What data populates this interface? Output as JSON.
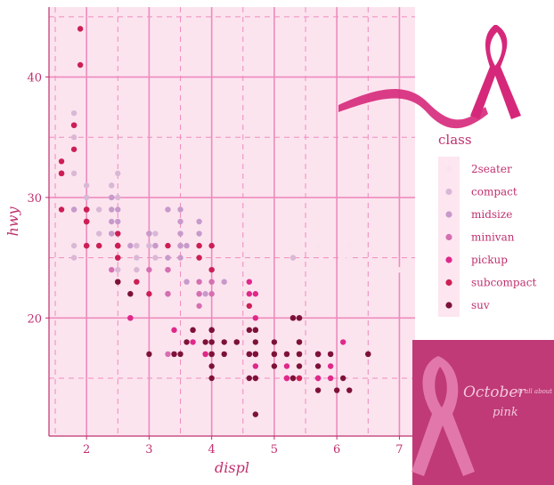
{
  "chart_data": {
    "type": "scatter",
    "xlabel": "displ",
    "ylabel": "hwy",
    "xlim": [
      1.4,
      7.25
    ],
    "ylim": [
      10.2,
      45.8
    ],
    "x_ticks": [
      2,
      3,
      4,
      5,
      6,
      7
    ],
    "y_ticks": [
      20,
      30,
      40
    ],
    "grid": true,
    "legend": {
      "title": "class",
      "position": "right",
      "entries": [
        "2seater",
        "compact",
        "midsize",
        "minivan",
        "pickup",
        "subcompact",
        "suv"
      ]
    },
    "colors": {
      "2seater": "#fbe3ee",
      "compact": "#d9b8d6",
      "midsize": "#c79acb",
      "minivan": "#d66fb1",
      "pickup": "#e0288a",
      "subcompact": "#cc1f55",
      "suv": "#7d1238"
    },
    "series": [
      {
        "name": "2seater",
        "points": [
          [
            5.7,
            26
          ],
          [
            6.1,
            25
          ],
          [
            6.2,
            26
          ],
          [
            6.2,
            25
          ],
          [
            7.0,
            24
          ]
        ]
      },
      {
        "name": "compact",
        "points": [
          [
            1.8,
            29
          ],
          [
            1.8,
            29
          ],
          [
            2.0,
            31
          ],
          [
            2.0,
            30
          ],
          [
            2.8,
            26
          ],
          [
            2.8,
            26
          ],
          [
            3.1,
            27
          ],
          [
            1.8,
            26
          ],
          [
            1.8,
            25
          ],
          [
            2.0,
            28
          ],
          [
            2.0,
            29
          ],
          [
            2.8,
            25
          ],
          [
            3.1,
            25
          ],
          [
            2.2,
            27
          ],
          [
            2.2,
            29
          ],
          [
            2.4,
            31
          ],
          [
            2.4,
            31
          ],
          [
            3.0,
            26
          ],
          [
            1.8,
            36
          ],
          [
            1.8,
            36
          ],
          [
            1.8,
            32
          ],
          [
            2.0,
            28
          ],
          [
            2.2,
            26
          ],
          [
            2.5,
            25
          ],
          [
            2.5,
            25
          ],
          [
            2.5,
            32
          ],
          [
            2.5,
            30
          ],
          [
            1.8,
            35
          ],
          [
            1.8,
            37
          ],
          [
            2.5,
            27
          ],
          [
            2.5,
            24
          ],
          [
            2.8,
            24
          ],
          [
            5.3,
            25
          ]
        ]
      },
      {
        "name": "midsize",
        "points": [
          [
            2.4,
            30
          ],
          [
            2.4,
            27
          ],
          [
            3.1,
            26
          ],
          [
            3.5,
            29
          ],
          [
            3.6,
            26
          ],
          [
            3.5,
            27
          ],
          [
            3.5,
            26
          ],
          [
            3.5,
            26
          ],
          [
            3.5,
            25
          ],
          [
            3.8,
            28
          ],
          [
            3.8,
            27
          ],
          [
            4.0,
            26
          ],
          [
            2.5,
            29
          ],
          [
            2.5,
            28
          ],
          [
            3.3,
            29
          ],
          [
            2.2,
            26
          ],
          [
            2.4,
            28
          ],
          [
            3.0,
            27
          ],
          [
            2.4,
            30
          ],
          [
            2.7,
            26
          ],
          [
            3.3,
            25
          ],
          [
            3.5,
            28
          ],
          [
            1.8,
            29
          ],
          [
            2.0,
            29
          ],
          [
            3.1,
            26
          ],
          [
            2.4,
            29
          ],
          [
            3.8,
            26
          ],
          [
            2.5,
            27
          ],
          [
            2.5,
            26
          ],
          [
            3.0,
            27
          ],
          [
            4.0,
            24
          ],
          [
            3.6,
            23
          ],
          [
            3.8,
            22
          ],
          [
            3.9,
            22
          ],
          [
            3.5,
            26
          ],
          [
            2.4,
            27
          ],
          [
            2.7,
            22
          ],
          [
            3.3,
            22
          ],
          [
            4.2,
            23
          ]
        ]
      },
      {
        "name": "minivan",
        "points": [
          [
            2.4,
            24
          ],
          [
            3.0,
            24
          ],
          [
            3.3,
            22
          ],
          [
            3.3,
            22
          ],
          [
            3.3,
            24
          ],
          [
            3.3,
            24
          ],
          [
            3.3,
            17
          ],
          [
            3.8,
            22
          ],
          [
            3.8,
            21
          ],
          [
            3.8,
            23
          ],
          [
            4.0,
            23
          ],
          [
            4.0,
            22
          ]
        ]
      },
      {
        "name": "pickup",
        "points": [
          [
            2.7,
            20
          ],
          [
            2.7,
            20
          ],
          [
            3.4,
            19
          ],
          [
            3.4,
            17
          ],
          [
            4.0,
            17
          ],
          [
            4.7,
            17
          ],
          [
            4.7,
            15
          ],
          [
            4.7,
            17
          ],
          [
            5.7,
            17
          ],
          [
            6.1,
            18
          ],
          [
            4.7,
            19
          ],
          [
            4.7,
            20
          ],
          [
            5.2,
            15
          ],
          [
            5.2,
            17
          ],
          [
            5.7,
            17
          ],
          [
            5.9,
            16
          ],
          [
            4.7,
            17
          ],
          [
            4.7,
            16
          ],
          [
            5.2,
            16
          ],
          [
            5.7,
            15
          ],
          [
            5.9,
            17
          ],
          [
            4.6,
            23
          ],
          [
            5.4,
            15
          ],
          [
            4.0,
            19
          ],
          [
            4.6,
            22
          ],
          [
            4.0,
            18
          ],
          [
            3.7,
            19
          ],
          [
            3.7,
            18
          ],
          [
            3.9,
            17
          ],
          [
            3.9,
            17
          ],
          [
            4.7,
            22
          ],
          [
            5.2,
            15
          ],
          [
            5.2,
            15
          ],
          [
            5.7,
            15
          ],
          [
            5.9,
            15
          ]
        ]
      },
      {
        "name": "subcompact",
        "points": [
          [
            3.8,
            26
          ],
          [
            3.8,
            25
          ],
          [
            4.0,
            26
          ],
          [
            4.0,
            24
          ],
          [
            4.6,
            21
          ],
          [
            5.4,
            15
          ],
          [
            2.0,
            28
          ],
          [
            2.0,
            28
          ],
          [
            2.0,
            26
          ],
          [
            2.2,
            26
          ],
          [
            2.5,
            26
          ],
          [
            2.5,
            26
          ],
          [
            3.3,
            26
          ],
          [
            1.6,
            33
          ],
          [
            1.6,
            32
          ],
          [
            1.6,
            32
          ],
          [
            1.6,
            29
          ],
          [
            1.6,
            32
          ],
          [
            1.8,
            34
          ],
          [
            1.8,
            36
          ],
          [
            1.8,
            36
          ],
          [
            2.0,
            29
          ],
          [
            1.9,
            44
          ],
          [
            2.0,
            29
          ],
          [
            2.0,
            26
          ],
          [
            2.0,
            29
          ],
          [
            2.5,
            25
          ],
          [
            1.9,
            41
          ],
          [
            2.0,
            28
          ],
          [
            2.5,
            27
          ],
          [
            2.5,
            25
          ],
          [
            2.8,
            23
          ],
          [
            2.5,
            23
          ],
          [
            2.5,
            26
          ],
          [
            3.0,
            22
          ]
        ]
      },
      {
        "name": "suv",
        "points": [
          [
            5.3,
            20
          ],
          [
            5.3,
            15
          ],
          [
            5.3,
            20
          ],
          [
            5.7,
            17
          ],
          [
            6.5,
            17
          ],
          [
            3.7,
            19
          ],
          [
            4.7,
            18
          ],
          [
            4.7,
            17
          ],
          [
            4.7,
            19
          ],
          [
            5.2,
            17
          ],
          [
            5.7,
            17
          ],
          [
            5.9,
            17
          ],
          [
            4.0,
            17
          ],
          [
            4.0,
            19
          ],
          [
            4.6,
            17
          ],
          [
            5.0,
            17
          ],
          [
            5.4,
            17
          ],
          [
            5.4,
            16
          ],
          [
            4.0,
            15
          ],
          [
            4.2,
            17
          ],
          [
            4.4,
            18
          ],
          [
            4.6,
            17
          ],
          [
            5.4,
            17
          ],
          [
            6.2,
            14
          ],
          [
            4.6,
            15
          ],
          [
            5.4,
            18
          ],
          [
            5.7,
            17
          ],
          [
            3.4,
            17
          ],
          [
            3.6,
            18
          ],
          [
            3.9,
            18
          ],
          [
            4.0,
            19
          ],
          [
            4.7,
            15
          ],
          [
            4.7,
            12
          ],
          [
            5.7,
            14
          ],
          [
            6.1,
            15
          ],
          [
            5.4,
            20
          ],
          [
            5.0,
            18
          ],
          [
            4.7,
            19
          ],
          [
            5.3,
            15
          ],
          [
            4.2,
            18
          ],
          [
            4.4,
            18
          ],
          [
            5.4,
            18
          ],
          [
            6.5,
            17
          ],
          [
            3.5,
            17
          ],
          [
            4.0,
            16
          ],
          [
            4.6,
            19
          ],
          [
            5.0,
            17
          ],
          [
            5.4,
            20
          ],
          [
            4.0,
            17
          ],
          [
            5.0,
            16
          ],
          [
            4.7,
            17
          ],
          [
            5.7,
            16
          ],
          [
            6.0,
            14
          ],
          [
            2.5,
            23
          ],
          [
            2.7,
            22
          ],
          [
            3.0,
            17
          ],
          [
            4.0,
            18
          ]
        ]
      }
    ]
  },
  "badge": {
    "line1": "October",
    "line2": "is all about",
    "line3": "pink"
  },
  "theme": {
    "panel_bg": "#fce4ef",
    "grid_major": "#ee8bbd",
    "grid_minor": "#ee8bbd",
    "axis_line": "#c0306f",
    "text": "#c0306f",
    "ribbon": "#d6287a",
    "badge_bg": "#bf3a77"
  }
}
